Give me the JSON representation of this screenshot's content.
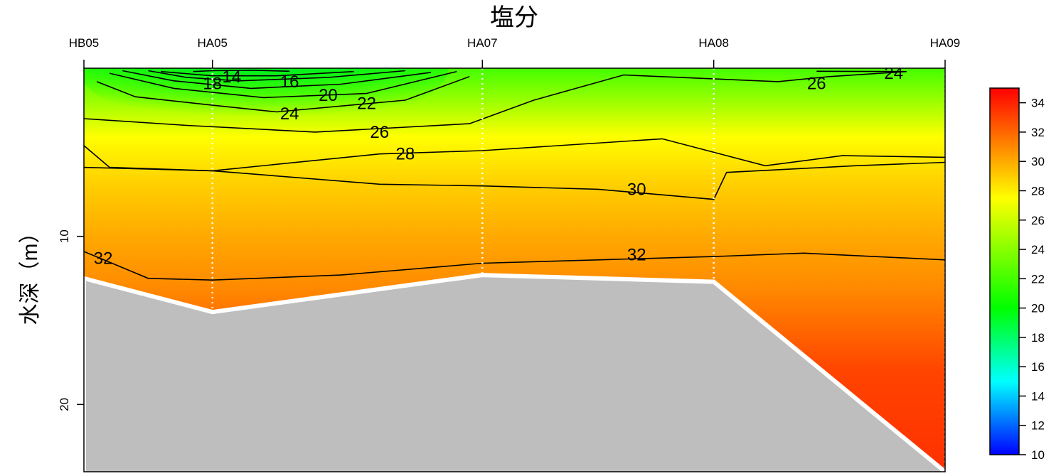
{
  "chart_data": {
    "type": "heatmap",
    "title": "塩分",
    "xlabel": "",
    "ylabel": "水深（m）",
    "stations": [
      "HB05",
      "HA05",
      "HA07",
      "HA08",
      "HA09"
    ],
    "station_x": [
      0,
      1.0,
      3.1,
      4.9,
      6.7
    ],
    "ylim": [
      24,
      0
    ],
    "yticks": [
      10,
      20
    ],
    "bottom_depth": [
      12.5,
      14.5,
      12.3,
      12.7,
      24.0
    ],
    "colorbar": {
      "range": [
        10,
        35
      ],
      "ticks": [
        10,
        12,
        14,
        16,
        18,
        20,
        22,
        24,
        26,
        28,
        30,
        32,
        34
      ],
      "colors": [
        "#0000ff",
        "#00ffff",
        "#00ff00",
        "#ffff00",
        "#ff8000",
        "#ff0000"
      ]
    },
    "contours": [
      {
        "level": 14,
        "label": "14",
        "points": [
          [
            0.85,
            0.2
          ],
          [
            1.0,
            0.15
          ],
          [
            1.3,
            0.12
          ],
          [
            1.6,
            0.18
          ]
        ]
      },
      {
        "level": 16,
        "label": "16",
        "points": [
          [
            0.6,
            0.2
          ],
          [
            1.0,
            0.45
          ],
          [
            1.5,
            0.45
          ],
          [
            2.1,
            0.2
          ]
        ]
      },
      {
        "level": 18,
        "label": "18",
        "points": [
          [
            0.5,
            0.15
          ],
          [
            0.8,
            0.55
          ],
          [
            1.2,
            0.75
          ],
          [
            1.9,
            0.55
          ],
          [
            2.5,
            0.15
          ]
        ]
      },
      {
        "level": 20,
        "label": "20",
        "points": [
          [
            0.3,
            0.15
          ],
          [
            0.7,
            0.75
          ],
          [
            1.3,
            1.2
          ],
          [
            2.0,
            0.95
          ],
          [
            2.7,
            0.25
          ]
        ]
      },
      {
        "level": 22,
        "label": "22",
        "points": [
          [
            0.2,
            0.3
          ],
          [
            0.7,
            1.2
          ],
          [
            1.4,
            1.75
          ],
          [
            2.2,
            1.5
          ],
          [
            2.9,
            0.2
          ]
        ]
      },
      {
        "level": 24,
        "label": "24",
        "points": [
          [
            0.1,
            0.8
          ],
          [
            0.4,
            1.7
          ],
          [
            1.0,
            2.2
          ],
          [
            1.5,
            2.6
          ],
          [
            2.5,
            1.9
          ],
          [
            3.0,
            0.5
          ]
        ]
      },
      {
        "level": 26,
        "label": "26",
        "points": [
          [
            0,
            3.0
          ],
          [
            0.8,
            3.4
          ],
          [
            1.8,
            3.8
          ],
          [
            3.0,
            3.3
          ],
          [
            3.5,
            1.9
          ],
          [
            4.2,
            0.4
          ],
          [
            5.4,
            0.8
          ],
          [
            5.8,
            0.5
          ],
          [
            6.4,
            0.2
          ]
        ]
      },
      {
        "level": 24,
        "label": "24",
        "points": [
          [
            5.7,
            0.18
          ],
          [
            6.4,
            0.2
          ]
        ]
      },
      {
        "level": 28,
        "label": "28",
        "points": [
          [
            0,
            4.6
          ],
          [
            0.2,
            5.9
          ],
          [
            1.0,
            6.1
          ],
          [
            2.3,
            5.1
          ],
          [
            3.1,
            4.9
          ],
          [
            4.5,
            4.2
          ],
          [
            5.3,
            5.8
          ],
          [
            5.9,
            5.2
          ],
          [
            6.7,
            5.3
          ]
        ]
      },
      {
        "level": 30,
        "label": "30",
        "points": [
          [
            0,
            5.9
          ],
          [
            1.0,
            6.1
          ],
          [
            2.3,
            6.9
          ],
          [
            3.1,
            7.0
          ],
          [
            4.0,
            7.2
          ],
          [
            4.9,
            7.8
          ],
          [
            5.0,
            6.2
          ],
          [
            6.0,
            5.8
          ],
          [
            6.7,
            5.6
          ]
        ]
      },
      {
        "level": 32,
        "label": "32",
        "points": [
          [
            0,
            10.9
          ],
          [
            0.5,
            12.5
          ],
          [
            1.0,
            12.6
          ],
          [
            2.0,
            12.3
          ],
          [
            3.1,
            11.6
          ],
          [
            4.0,
            11.4
          ],
          [
            4.9,
            11.2
          ],
          [
            5.6,
            11.0
          ],
          [
            6.7,
            11.4
          ]
        ]
      }
    ],
    "contour_labels": [
      {
        "text": "14",
        "x": 1.15,
        "y": 0.5
      },
      {
        "text": "16",
        "x": 1.6,
        "y": 0.8
      },
      {
        "text": "18",
        "x": 1.0,
        "y": 0.9
      },
      {
        "text": "20",
        "x": 1.9,
        "y": 1.6
      },
      {
        "text": "22",
        "x": 2.2,
        "y": 2.1
      },
      {
        "text": "24",
        "x": 1.6,
        "y": 2.7
      },
      {
        "text": "26",
        "x": 2.3,
        "y": 3.8
      },
      {
        "text": "26",
        "x": 5.7,
        "y": 0.9
      },
      {
        "text": "24",
        "x": 6.3,
        "y": 0.3
      },
      {
        "text": "28",
        "x": 2.5,
        "y": 5.1
      },
      {
        "text": "30",
        "x": 4.3,
        "y": 7.2
      },
      {
        "text": "32",
        "x": 4.3,
        "y": 11.1
      },
      {
        "text": "32",
        "x": 0.15,
        "y": 11.3
      }
    ]
  }
}
